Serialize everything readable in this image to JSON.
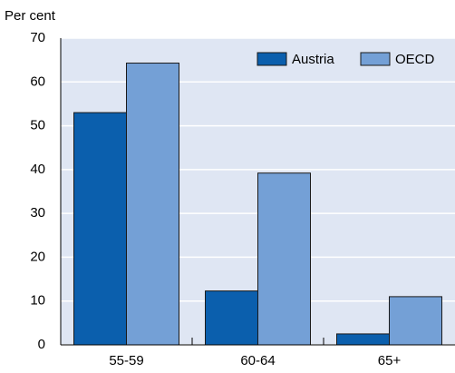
{
  "chart_data": {
    "type": "bar",
    "y_label": "Per cent",
    "categories": [
      "55-59",
      "60-64",
      "65+"
    ],
    "series": [
      {
        "name": "Austria",
        "color": "#0b5fad",
        "values": [
          53,
          12.3,
          2.5
        ]
      },
      {
        "name": "OECD",
        "color": "#74a0d6",
        "values": [
          64.3,
          39.2,
          11
        ]
      }
    ],
    "ylim": [
      0,
      70
    ],
    "yticks": [
      0,
      10,
      20,
      30,
      40,
      50,
      60,
      70
    ],
    "grid": true,
    "legend": "top-right"
  }
}
